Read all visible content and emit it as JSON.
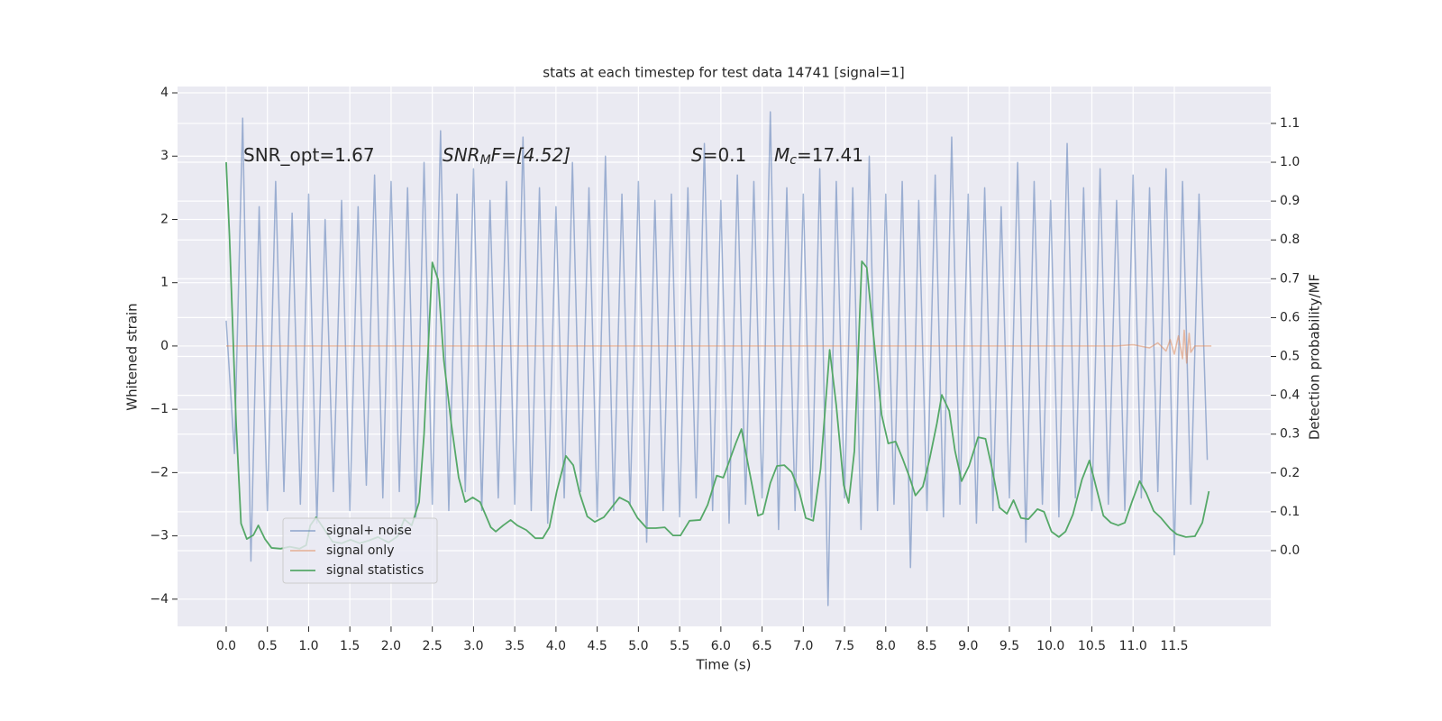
{
  "chart_data": {
    "type": "line",
    "title": "stats at each timestep for test data 14741 [signal=1]",
    "x_label": "Time (s)",
    "y_label": "Whitened strain",
    "y2_label": "Detection probability/MF",
    "annotations": [
      {
        "text": "SNR_opt=1.67"
      },
      {
        "base": "SNR",
        "sub": "M",
        "text": "F=[4.52]"
      },
      {
        "base": "S",
        "text": "=0.1"
      },
      {
        "base": "M",
        "sub": "c",
        "text": "=17.41"
      }
    ],
    "xlim": [
      -0.59,
      12.67
    ],
    "ylim": [
      -4.43,
      4.1
    ],
    "y2lim": [
      -0.195,
      1.195
    ],
    "xticks": [
      {
        "value": 0,
        "label": "0.0"
      },
      {
        "value": 0.5,
        "label": "0.5"
      },
      {
        "value": 1,
        "label": "1.0"
      },
      {
        "value": 1.5,
        "label": "1.5"
      },
      {
        "value": 2,
        "label": "2.0"
      },
      {
        "value": 2.5,
        "label": "2.5"
      },
      {
        "value": 3,
        "label": "3.0"
      },
      {
        "value": 3.5,
        "label": "3.5"
      },
      {
        "value": 4,
        "label": "4.0"
      },
      {
        "value": 4.5,
        "label": "4.5"
      },
      {
        "value": 5,
        "label": "5.0"
      },
      {
        "value": 5.5,
        "label": "5.5"
      },
      {
        "value": 6,
        "label": "6.0"
      },
      {
        "value": 6.5,
        "label": "6.5"
      },
      {
        "value": 7,
        "label": "7.0"
      },
      {
        "value": 7.5,
        "label": "7.5"
      },
      {
        "value": 8,
        "label": "8.0"
      },
      {
        "value": 8.5,
        "label": "8.5"
      },
      {
        "value": 9,
        "label": "9.0"
      },
      {
        "value": 9.5,
        "label": "9.5"
      },
      {
        "value": 10,
        "label": "10.0"
      },
      {
        "value": 10.5,
        "label": "10.5"
      },
      {
        "value": 11,
        "label": "11.0"
      },
      {
        "value": 11.5,
        "label": "11.5"
      }
    ],
    "yticks": [
      {
        "value": -4,
        "label": "−4"
      },
      {
        "value": -3,
        "label": "−3"
      },
      {
        "value": -2,
        "label": "−2"
      },
      {
        "value": -1,
        "label": "−1"
      },
      0,
      1,
      2,
      3,
      4
    ],
    "y2ticks": [
      {
        "value": 0,
        "label": "0.0"
      },
      {
        "value": 0.1,
        "label": "0.1"
      },
      {
        "value": 0.2,
        "label": "0.2"
      },
      {
        "value": 0.3,
        "label": "0.3"
      },
      {
        "value": 0.4,
        "label": "0.4"
      },
      {
        "value": 0.5,
        "label": "0.5"
      },
      {
        "value": 0.6,
        "label": "0.6"
      },
      {
        "value": 0.7,
        "label": "0.7"
      },
      {
        "value": 0.8,
        "label": "0.8"
      },
      {
        "value": 0.9,
        "label": "0.9"
      },
      {
        "value": 1,
        "label": "1.0"
      },
      {
        "value": 1.1,
        "label": "1.1"
      }
    ],
    "grid": true,
    "legend": "lower left",
    "series": [
      {
        "name": "signal+ noise",
        "color": "#4c72b0",
        "x": [
          0,
          0.1,
          0.2,
          0.3,
          0.4,
          0.5,
          0.6,
          0.7,
          0.8,
          0.9,
          1,
          1.1,
          1.2,
          1.3,
          1.4,
          1.5,
          1.6,
          1.7,
          1.8,
          1.9,
          2,
          2.1,
          2.2,
          2.3,
          2.4,
          2.5,
          2.6,
          2.7,
          2.8,
          2.9,
          3,
          3.1,
          3.2,
          3.3,
          3.4,
          3.5,
          3.6,
          3.7,
          3.8,
          3.9,
          4,
          4.1,
          4.2,
          4.3,
          4.4,
          4.5,
          4.6,
          4.7,
          4.8,
          4.9,
          5,
          5.1,
          5.2,
          5.3,
          5.4,
          5.5,
          5.6,
          5.7,
          5.8,
          5.9,
          6,
          6.1,
          6.2,
          6.3,
          6.4,
          6.5,
          6.6,
          6.7,
          6.8,
          6.9,
          7,
          7.1,
          7.2,
          7.3,
          7.4,
          7.5,
          7.6,
          7.7,
          7.8,
          7.9,
          8,
          8.1,
          8.2,
          8.3,
          8.4,
          8.5,
          8.6,
          8.7,
          8.8,
          8.9,
          9,
          9.1,
          9.2,
          9.3,
          9.4,
          9.5,
          9.6,
          9.7,
          9.8,
          9.9,
          10,
          10.1,
          10.2,
          10.3,
          10.4,
          10.5,
          10.6,
          10.7,
          10.8,
          10.9,
          11,
          11.1,
          11.2,
          11.3,
          11.4,
          11.5,
          11.6,
          11.7,
          11.8,
          11.9
        ],
        "values": [
          0.4,
          -1.7,
          3.6,
          -3.4,
          2.2,
          -2.6,
          2.6,
          -2.3,
          2.1,
          -2.5,
          2.4,
          -2.8,
          2.0,
          -2.3,
          2.3,
          -2.6,
          2.2,
          -2.2,
          2.7,
          -2.4,
          2.6,
          -2.3,
          2.5,
          -2.7,
          2.9,
          -2.5,
          3.4,
          -2.6,
          2.4,
          -2.3,
          2.8,
          -2.6,
          2.3,
          -2.4,
          2.6,
          -2.5,
          3.3,
          -2.6,
          2.5,
          -2.8,
          2.2,
          -2.4,
          2.9,
          -2.3,
          2.5,
          -2.7,
          3.0,
          -2.6,
          2.4,
          -2.5,
          2.6,
          -3.1,
          2.3,
          -2.6,
          2.4,
          -2.7,
          2.5,
          -2.4,
          3.2,
          -2.6,
          2.3,
          -2.8,
          2.7,
          -2.5,
          2.6,
          -2.4,
          3.7,
          -2.9,
          2.5,
          -2.6,
          2.4,
          -2.7,
          2.8,
          -4.1,
          2.6,
          -2.4,
          2.5,
          -2.9,
          3.0,
          -2.6,
          2.4,
          -2.5,
          2.6,
          -3.5,
          2.3,
          -2.6,
          2.7,
          -2.7,
          3.3,
          -2.5,
          2.4,
          -2.8,
          2.5,
          -2.6,
          2.2,
          -2.4,
          2.9,
          -3.1,
          2.6,
          -2.5,
          2.3,
          -2.7,
          3.2,
          -2.4,
          2.5,
          -2.6,
          2.8,
          -2.5,
          2.3,
          -2.6,
          2.7,
          -2.4,
          2.5,
          -2.3,
          2.8,
          -3.3,
          2.6,
          -2.5,
          2.4,
          -1.8
        ]
      },
      {
        "name": "signal only",
        "color": "#dd8452",
        "x": [
          0,
          10.8,
          11.0,
          11.2,
          11.3,
          11.4,
          11.45,
          11.5,
          11.55,
          11.6,
          11.62,
          11.65,
          11.68,
          11.7,
          11.75,
          11.95
        ],
        "values": [
          0,
          0,
          0.02,
          -0.03,
          0.05,
          -0.08,
          0.1,
          -0.13,
          0.16,
          -0.2,
          0.25,
          -0.27,
          0.2,
          -0.1,
          0,
          0
        ]
      },
      {
        "name": "signal statistics",
        "color": "#55a868",
        "axis": "y2",
        "x": [
          0,
          0.04,
          0.12,
          0.18,
          0.25,
          0.33,
          0.39,
          0.47,
          0.55,
          0.66,
          0.77,
          0.89,
          0.97,
          1.02,
          1.09,
          1.18,
          1.29,
          1.4,
          1.51,
          1.62,
          1.73,
          1.84,
          1.97,
          2.08,
          2.16,
          2.25,
          2.34,
          2.4,
          2.5,
          2.57,
          2.64,
          2.73,
          2.82,
          2.9,
          2.99,
          3.08,
          3.14,
          3.21,
          3.27,
          3.36,
          3.45,
          3.53,
          3.64,
          3.75,
          3.84,
          3.92,
          4.01,
          4.12,
          4.21,
          4.29,
          4.38,
          4.47,
          4.58,
          4.66,
          4.77,
          4.88,
          4.99,
          5.1,
          5.21,
          5.32,
          5.42,
          5.51,
          5.62,
          5.75,
          5.84,
          5.95,
          6.03,
          6.18,
          6.25,
          6.34,
          6.45,
          6.51,
          6.6,
          6.68,
          6.77,
          6.86,
          6.95,
          7.03,
          7.12,
          7.21,
          7.32,
          7.4,
          7.49,
          7.55,
          7.62,
          7.71,
          7.77,
          7.86,
          7.95,
          8.03,
          8.12,
          8.21,
          8.29,
          8.36,
          8.45,
          8.53,
          8.62,
          8.68,
          8.77,
          8.84,
          8.92,
          9.01,
          9.12,
          9.21,
          9.29,
          9.38,
          9.47,
          9.55,
          9.64,
          9.73,
          9.84,
          9.92,
          10.01,
          10.1,
          10.18,
          10.27,
          10.38,
          10.47,
          10.55,
          10.64,
          10.73,
          10.82,
          10.9,
          10.99,
          11.08,
          11.16,
          11.25,
          11.34,
          11.45,
          11.53,
          11.64,
          11.75,
          11.84,
          11.92
        ],
        "values": [
          1.0,
          0.81,
          0.33,
          0.07,
          0.03,
          0.04,
          0.065,
          0.03,
          0.007,
          0.005,
          0.01,
          0.005,
          0.014,
          0.065,
          0.086,
          0.058,
          0.023,
          0.019,
          0.028,
          0.019,
          0.026,
          0.035,
          0.021,
          0.037,
          0.081,
          0.065,
          0.125,
          0.3,
          0.742,
          0.698,
          0.49,
          0.327,
          0.188,
          0.125,
          0.137,
          0.125,
          0.095,
          0.06,
          0.049,
          0.065,
          0.079,
          0.065,
          0.053,
          0.032,
          0.032,
          0.06,
          0.153,
          0.244,
          0.22,
          0.146,
          0.088,
          0.074,
          0.086,
          0.107,
          0.137,
          0.125,
          0.084,
          0.058,
          0.058,
          0.06,
          0.039,
          0.039,
          0.077,
          0.079,
          0.118,
          0.193,
          0.188,
          0.276,
          0.313,
          0.211,
          0.09,
          0.095,
          0.174,
          0.218,
          0.22,
          0.202,
          0.153,
          0.084,
          0.077,
          0.211,
          0.517,
          0.374,
          0.169,
          0.123,
          0.257,
          0.745,
          0.729,
          0.536,
          0.35,
          0.276,
          0.281,
          0.234,
          0.188,
          0.142,
          0.165,
          0.234,
          0.327,
          0.401,
          0.36,
          0.257,
          0.179,
          0.218,
          0.292,
          0.288,
          0.211,
          0.111,
          0.095,
          0.13,
          0.084,
          0.081,
          0.107,
          0.1,
          0.049,
          0.035,
          0.049,
          0.093,
          0.183,
          0.232,
          0.165,
          0.09,
          0.072,
          0.065,
          0.072,
          0.128,
          0.179,
          0.148,
          0.102,
          0.084,
          0.056,
          0.042,
          0.035,
          0.037,
          0.072,
          0.153
        ]
      }
    ]
  }
}
